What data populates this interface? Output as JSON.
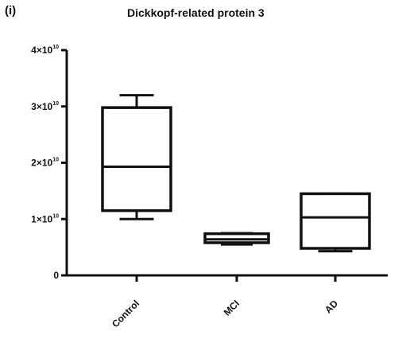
{
  "panel_label": "(i)",
  "chart_data": {
    "type": "box",
    "title": "Dickkopf-related protein 3",
    "xlabel": "",
    "ylabel": "",
    "categories": [
      "Control",
      "MCI",
      "AD"
    ],
    "ylim": [
      0,
      40000000000.0
    ],
    "yticks": [
      {
        "value": 0,
        "label": "0"
      },
      {
        "value": 10000000000.0,
        "label_base": "1×10",
        "label_exp": "10"
      },
      {
        "value": 20000000000.0,
        "label_base": "2×10",
        "label_exp": "10"
      },
      {
        "value": 30000000000.0,
        "label_base": "3×10",
        "label_exp": "10"
      },
      {
        "value": 40000000000.0,
        "label_base": "4×10",
        "label_exp": "10"
      }
    ],
    "boxes": [
      {
        "category": "Control",
        "min": 10000000000.0,
        "q1": 11500000000.0,
        "median": 19300000000.0,
        "q3": 29800000000.0,
        "max": 32000000000.0
      },
      {
        "category": "MCI",
        "min": 5500000000.0,
        "q1": 5800000000.0,
        "median": 6400000000.0,
        "q3": 7400000000.0,
        "max": 7500000000.0
      },
      {
        "category": "AD",
        "min": 4300000000.0,
        "q1": 4800000000.0,
        "median": 10300000000.0,
        "q3": 14500000000.0,
        "max": 14500000000.0
      }
    ],
    "grid": false,
    "legend": "none",
    "color": "#111111"
  }
}
